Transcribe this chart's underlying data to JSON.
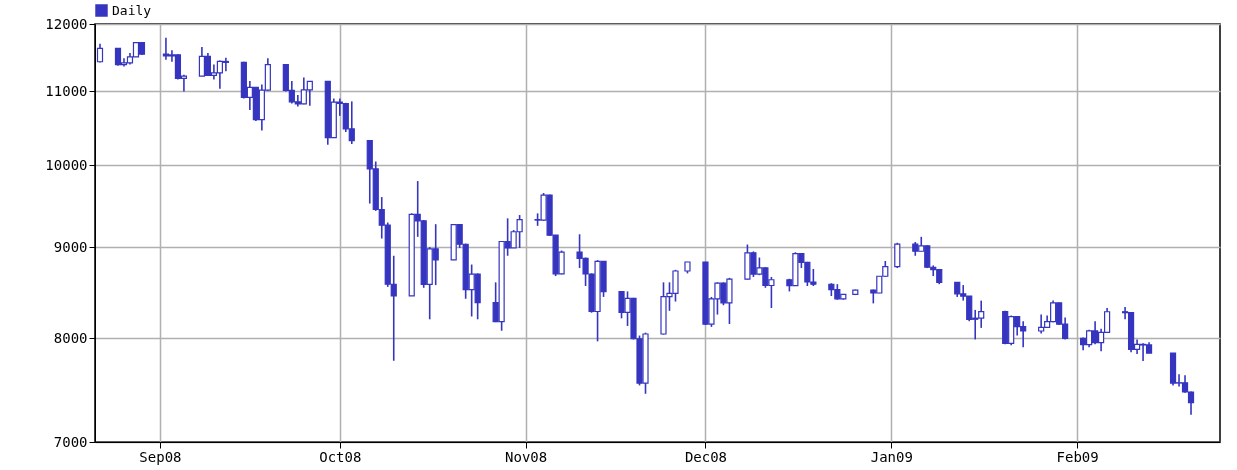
{
  "chart_data": {
    "type": "candlestick",
    "x": [
      "2008-08-22",
      "2008-08-25",
      "2008-08-26",
      "2008-08-27",
      "2008-08-28",
      "2008-08-29",
      "2008-09-02",
      "2008-09-03",
      "2008-09-04",
      "2008-09-05",
      "2008-09-08",
      "2008-09-09",
      "2008-09-10",
      "2008-09-11",
      "2008-09-12",
      "2008-09-15",
      "2008-09-16",
      "2008-09-17",
      "2008-09-18",
      "2008-09-19",
      "2008-09-22",
      "2008-09-23",
      "2008-09-24",
      "2008-09-25",
      "2008-09-26",
      "2008-09-29",
      "2008-09-30",
      "2008-10-01",
      "2008-10-02",
      "2008-10-03",
      "2008-10-06",
      "2008-10-07",
      "2008-10-08",
      "2008-10-09",
      "2008-10-10",
      "2008-10-13",
      "2008-10-14",
      "2008-10-15",
      "2008-10-16",
      "2008-10-17",
      "2008-10-20",
      "2008-10-21",
      "2008-10-22",
      "2008-10-23",
      "2008-10-24",
      "2008-10-27",
      "2008-10-28",
      "2008-10-29",
      "2008-10-30",
      "2008-10-31",
      "2008-11-03",
      "2008-11-04",
      "2008-11-05",
      "2008-11-06",
      "2008-11-07",
      "2008-11-10",
      "2008-11-11",
      "2008-11-12",
      "2008-11-13",
      "2008-11-14",
      "2008-11-17",
      "2008-11-18",
      "2008-11-19",
      "2008-11-20",
      "2008-11-21",
      "2008-11-24",
      "2008-11-25",
      "2008-11-26",
      "2008-11-28",
      "2008-12-01",
      "2008-12-02",
      "2008-12-03",
      "2008-12-04",
      "2008-12-05",
      "2008-12-08",
      "2008-12-09",
      "2008-12-10",
      "2008-12-11",
      "2008-12-12",
      "2008-12-15",
      "2008-12-16",
      "2008-12-17",
      "2008-12-18",
      "2008-12-19",
      "2008-12-22",
      "2008-12-23",
      "2008-12-24",
      "2008-12-26",
      "2008-12-29",
      "2008-12-30",
      "2008-12-31",
      "2009-01-02",
      "2009-01-05",
      "2009-01-06",
      "2009-01-07",
      "2009-01-08",
      "2009-01-09",
      "2009-01-12",
      "2009-01-13",
      "2009-01-14",
      "2009-01-15",
      "2009-01-16",
      "2009-01-20",
      "2009-01-21",
      "2009-01-22",
      "2009-01-23",
      "2009-01-26",
      "2009-01-27",
      "2009-01-28",
      "2009-01-29",
      "2009-01-30",
      "2009-02-02",
      "2009-02-03",
      "2009-02-04",
      "2009-02-05",
      "2009-02-06",
      "2009-02-09",
      "2009-02-10",
      "2009-02-11",
      "2009-02-12",
      "2009-02-13",
      "2009-02-17",
      "2009-02-18",
      "2009-02-19",
      "2009-02-20"
    ],
    "series": [
      {
        "name": "Daily",
        "color": "#3535c0",
        "ohlc": [
          [
            11430,
            11700,
            11420,
            11628
          ],
          [
            11628,
            11630,
            11370,
            11387
          ],
          [
            11387,
            11480,
            11360,
            11413
          ],
          [
            11413,
            11560,
            11390,
            11502
          ],
          [
            11502,
            11720,
            11500,
            11715
          ],
          [
            11715,
            11720,
            11530,
            11543
          ],
          [
            11543,
            11790,
            11460,
            11516
          ],
          [
            11516,
            11600,
            11430,
            11532
          ],
          [
            11532,
            11540,
            11170,
            11188
          ],
          [
            11188,
            11240,
            11000,
            11220
          ],
          [
            11220,
            11650,
            11220,
            11510
          ],
          [
            11510,
            11560,
            11220,
            11231
          ],
          [
            11231,
            11390,
            11170,
            11268
          ],
          [
            11268,
            11450,
            11040,
            11434
          ],
          [
            11434,
            11490,
            11290,
            11421
          ],
          [
            11421,
            11430,
            10900,
            10917
          ],
          [
            10917,
            11150,
            10740,
            11059
          ],
          [
            11059,
            11060,
            10590,
            10609
          ],
          [
            10609,
            11100,
            10460,
            11019
          ],
          [
            11019,
            11480,
            11010,
            11388
          ],
          [
            11388,
            11390,
            11000,
            11016
          ],
          [
            11016,
            11150,
            10830,
            10854
          ],
          [
            10854,
            10950,
            10790,
            10825
          ],
          [
            10825,
            11200,
            10820,
            11022
          ],
          [
            11022,
            11150,
            10800,
            11143
          ],
          [
            11143,
            11150,
            10270,
            10365
          ],
          [
            10365,
            10900,
            10360,
            10851
          ],
          [
            10851,
            10900,
            10660,
            10831
          ],
          [
            10831,
            10840,
            10440,
            10482
          ],
          [
            10482,
            10860,
            10280,
            10325
          ],
          [
            10325,
            10330,
            9520,
            9955
          ],
          [
            9955,
            10050,
            9430,
            9447
          ],
          [
            9447,
            9600,
            9100,
            9258
          ],
          [
            9258,
            9290,
            8550,
            8579
          ],
          [
            8579,
            8900,
            7773,
            8451
          ],
          [
            8451,
            9400,
            8450,
            9387
          ],
          [
            9387,
            9800,
            9120,
            9310
          ],
          [
            9310,
            9320,
            8540,
            8577
          ],
          [
            8577,
            9000,
            8200,
            8979
          ],
          [
            8979,
            9270,
            8570,
            8852
          ],
          [
            8852,
            9270,
            8850,
            9265
          ],
          [
            9265,
            9270,
            8990,
            9033
          ],
          [
            9033,
            9040,
            8420,
            8519
          ],
          [
            8519,
            8800,
            8230,
            8691
          ],
          [
            8691,
            8700,
            8200,
            8378
          ],
          [
            8378,
            8600,
            8170,
            8175
          ],
          [
            8175,
            9070,
            8080,
            9065
          ],
          [
            9065,
            9340,
            8900,
            8990
          ],
          [
            8990,
            9200,
            8990,
            9180
          ],
          [
            9180,
            9380,
            8990,
            9325
          ],
          [
            9325,
            9400,
            9250,
            9319
          ],
          [
            9319,
            9650,
            9310,
            9625
          ],
          [
            9625,
            9630,
            9130,
            9139
          ],
          [
            9139,
            9140,
            8670,
            8695
          ],
          [
            8695,
            8960,
            8690,
            8943
          ],
          [
            8943,
            9150,
            8760,
            8870
          ],
          [
            8870,
            8880,
            8560,
            8693
          ],
          [
            8693,
            8700,
            8270,
            8283
          ],
          [
            8283,
            8850,
            7970,
            8835
          ],
          [
            8835,
            8840,
            8440,
            8497
          ],
          [
            8497,
            8500,
            8210,
            8273
          ],
          [
            8273,
            8500,
            8130,
            8424
          ],
          [
            8424,
            8430,
            7990,
            7997
          ],
          [
            7997,
            8030,
            7530,
            7552
          ],
          [
            7552,
            8060,
            7449,
            8046
          ],
          [
            8046,
            8600,
            8040,
            8443
          ],
          [
            8443,
            8600,
            8290,
            8479
          ],
          [
            8479,
            8740,
            8390,
            8727
          ],
          [
            8727,
            8830,
            8700,
            8829
          ],
          [
            8829,
            8830,
            8140,
            8149
          ],
          [
            8149,
            8440,
            8120,
            8419
          ],
          [
            8419,
            8600,
            8250,
            8591
          ],
          [
            8591,
            8600,
            8350,
            8376
          ],
          [
            8376,
            8650,
            8150,
            8635
          ],
          [
            8635,
            9030,
            8630,
            8934
          ],
          [
            8934,
            8950,
            8660,
            8691
          ],
          [
            8691,
            8880,
            8680,
            8761
          ],
          [
            8761,
            8770,
            8540,
            8565
          ],
          [
            8565,
            8660,
            8320,
            8629
          ],
          [
            8629,
            8640,
            8500,
            8564
          ],
          [
            8564,
            8940,
            8560,
            8924
          ],
          [
            8924,
            8930,
            8760,
            8824
          ],
          [
            8824,
            8830,
            8560,
            8604
          ],
          [
            8604,
            8750,
            8560,
            8579
          ],
          [
            8579,
            8590,
            8450,
            8519
          ],
          [
            8519,
            8580,
            8410,
            8419
          ],
          [
            8419,
            8470,
            8410,
            8468
          ],
          [
            8468,
            8520,
            8460,
            8515
          ],
          [
            8515,
            8520,
            8370,
            8483
          ],
          [
            8483,
            8670,
            8480,
            8668
          ],
          [
            8668,
            8840,
            8660,
            8776
          ],
          [
            8776,
            9050,
            8760,
            9034
          ],
          [
            9034,
            9060,
            8900,
            8952
          ],
          [
            8952,
            9120,
            8950,
            9015
          ],
          [
            9015,
            9020,
            8760,
            8769
          ],
          [
            8769,
            8790,
            8670,
            8742
          ],
          [
            8742,
            8750,
            8580,
            8599
          ],
          [
            8599,
            8600,
            8440,
            8474
          ],
          [
            8474,
            8570,
            8400,
            8448
          ],
          [
            8448,
            8450,
            8180,
            8200
          ],
          [
            8200,
            8300,
            7990,
            8212
          ],
          [
            8212,
            8400,
            8110,
            8281
          ],
          [
            8281,
            8290,
            7940,
            7949
          ],
          [
            7949,
            8240,
            7930,
            8228
          ],
          [
            8228,
            8230,
            8030,
            8123
          ],
          [
            8123,
            8180,
            7910,
            8077
          ],
          [
            8077,
            8250,
            8050,
            8116
          ],
          [
            8116,
            8240,
            8110,
            8175
          ],
          [
            8175,
            8400,
            8170,
            8375
          ],
          [
            8375,
            8380,
            8140,
            8149
          ],
          [
            8149,
            8220,
            7990,
            8001
          ],
          [
            8001,
            8010,
            7880,
            7936
          ],
          [
            7936,
            8090,
            7910,
            8078
          ],
          [
            8078,
            8180,
            7940,
            7956
          ],
          [
            7956,
            8100,
            7870,
            8063
          ],
          [
            8063,
            8320,
            8060,
            8280
          ],
          [
            8280,
            8330,
            8200,
            8270
          ],
          [
            8270,
            8270,
            7860,
            7888
          ],
          [
            7888,
            7990,
            7840,
            7939
          ],
          [
            7939,
            7950,
            7770,
            7933
          ],
          [
            7933,
            7960,
            7850,
            7850
          ],
          [
            7850,
            7850,
            7530,
            7553
          ],
          [
            7553,
            7640,
            7520,
            7556
          ],
          [
            7556,
            7630,
            7460,
            7466
          ],
          [
            7466,
            7470,
            7250,
            7365
          ]
        ]
      }
    ],
    "xlim": [
      "2008-08-22",
      "2009-02-24"
    ],
    "xticks": [
      {
        "value": "2008-09-01",
        "label": "Sep08"
      },
      {
        "value": "2008-10-01",
        "label": "Oct08"
      },
      {
        "value": "2008-11-01",
        "label": "Nov08"
      },
      {
        "value": "2008-12-01",
        "label": "Dec08"
      },
      {
        "value": "2009-01-01",
        "label": "Jan09"
      },
      {
        "value": "2009-02-01",
        "label": "Feb09"
      }
    ],
    "ylim": [
      7000,
      12000
    ],
    "yticks": [
      7000,
      8000,
      9000,
      10000,
      11000,
      12000
    ],
    "log": true,
    "grid": true,
    "legend": "top left"
  }
}
